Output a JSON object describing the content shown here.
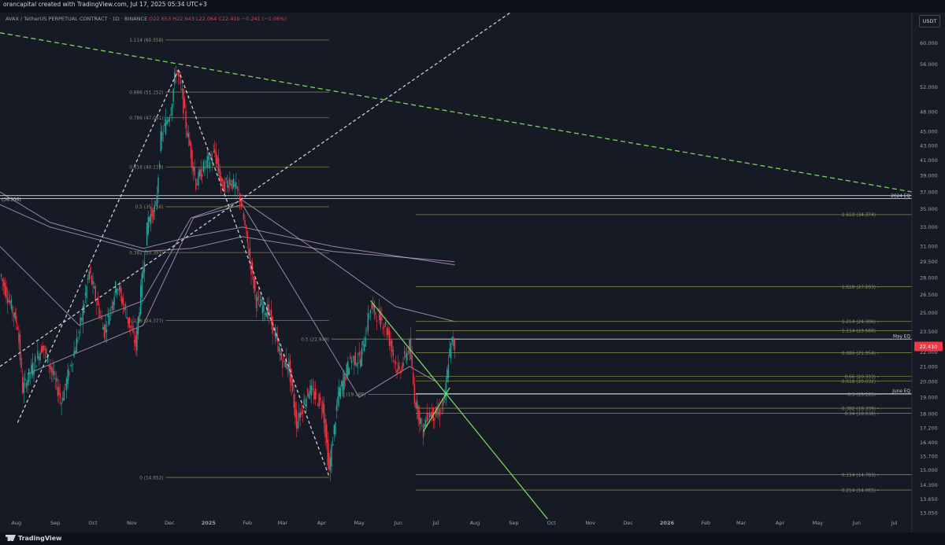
{
  "header": {
    "creator": "orancapital created with TradingView.com, Jul 17, 2025 05:34 UTC+3",
    "symbol": "AVAX / TetherUS PERPETUAL CONTRACT · 1D · BINANCE",
    "ohlc": "O22.653 H22.943 L22.064 C22.410 −0.241 (−1.06%)"
  },
  "currency": "USDT",
  "footer": {
    "brand": "TradingView"
  },
  "colors": {
    "background": "#161a25",
    "up": "#26a69a",
    "down": "#f23645",
    "fib_line": "#7c7f48",
    "trendline": "#7bd45a",
    "ema": "#c7a8d8",
    "eq_line": "#d1d4dc",
    "price_badge": "#f23645"
  },
  "chart_data": {
    "type": "candlestick",
    "scale": "log",
    "yaxis_ticks": [
      60.0,
      56.0,
      52.0,
      48.0,
      45.0,
      43.0,
      41.0,
      39.0,
      37.0,
      35.0,
      33.0,
      31.0,
      29.5,
      28.0,
      26.5,
      25.0,
      23.5,
      22.0,
      21.0,
      20.0,
      19.0,
      18.0,
      17.2,
      16.4,
      15.7,
      15.0,
      14.3,
      13.65,
      13.05
    ],
    "xaxis_ticks": [
      "Aug",
      "Sep",
      "Oct",
      "Nov",
      "Dec",
      "2025",
      "Feb",
      "Mar",
      "Apr",
      "May",
      "Jun",
      "Jul",
      "Aug",
      "Sep",
      "Oct",
      "Nov",
      "Dec",
      "2026",
      "Feb",
      "Mar",
      "Apr",
      "May",
      "Jun",
      "Jul"
    ],
    "x_range": [
      "2024-07-19",
      "2026-07-15"
    ],
    "y_range": [
      12.8,
      66.2
    ],
    "last_price": 22.41,
    "price_series": [
      [
        "2024-07-20",
        28.0
      ],
      [
        "2024-08-02",
        24.0
      ],
      [
        "2024-08-06",
        19.5
      ],
      [
        "2024-08-22",
        22.5
      ],
      [
        "2024-09-06",
        18.8
      ],
      [
        "2024-09-20",
        23.5
      ],
      [
        "2024-09-28",
        28.5
      ],
      [
        "2024-10-10",
        23.5
      ],
      [
        "2024-10-20",
        27.5
      ],
      [
        "2024-11-04",
        22.5
      ],
      [
        "2024-11-10",
        29.0
      ],
      [
        "2024-11-14",
        34.0
      ],
      [
        "2024-11-20",
        35.0
      ],
      [
        "2024-11-24",
        44.0
      ],
      [
        "2024-12-02",
        48.5
      ],
      [
        "2024-12-06",
        55.0
      ],
      [
        "2024-12-10",
        52.0
      ],
      [
        "2024-12-14",
        46.0
      ],
      [
        "2024-12-18",
        42.0
      ],
      [
        "2024-12-22",
        38.0
      ],
      [
        "2024-12-28",
        40.0
      ],
      [
        "2025-01-06",
        42.0
      ],
      [
        "2025-01-12",
        37.5
      ],
      [
        "2025-01-18",
        38.5
      ],
      [
        "2025-01-26",
        36.5
      ],
      [
        "2025-02-02",
        30.5
      ],
      [
        "2025-02-08",
        26.0
      ],
      [
        "2025-02-18",
        25.0
      ],
      [
        "2025-02-28",
        21.5
      ],
      [
        "2025-03-06",
        21.0
      ],
      [
        "2025-03-12",
        17.5
      ],
      [
        "2025-03-22",
        19.5
      ],
      [
        "2025-04-02",
        18.5
      ],
      [
        "2025-04-07",
        15.0
      ],
      [
        "2025-04-14",
        19.0
      ],
      [
        "2025-04-24",
        21.5
      ],
      [
        "2025-05-02",
        21.5
      ],
      [
        "2025-05-10",
        25.5
      ],
      [
        "2025-05-14",
        25.0
      ],
      [
        "2025-05-22",
        24.0
      ],
      [
        "2025-06-01",
        20.5
      ],
      [
        "2025-06-10",
        22.5
      ],
      [
        "2025-06-14",
        19.0
      ],
      [
        "2025-06-21",
        17.0
      ],
      [
        "2025-06-24",
        18.0
      ],
      [
        "2025-07-03",
        18.0
      ],
      [
        "2025-07-08",
        18.8
      ],
      [
        "2025-07-11",
        21.5
      ],
      [
        "2025-07-14",
        22.8
      ],
      [
        "2025-07-16",
        22.41
      ]
    ],
    "fib_levels": [
      {
        "label": "1.114 (60.558)",
        "value": 60.558,
        "from": "2024-11-28",
        "to": "2025-04-07"
      },
      {
        "label": "0.886 (51.152)",
        "value": 51.152,
        "from": "2024-11-28",
        "to": "2025-04-07"
      },
      {
        "label": "0.786 (47.061)",
        "value": 47.061,
        "from": "2024-11-28",
        "to": "2025-04-07"
      },
      {
        "label": "0.618 (40.119)",
        "value": 40.119,
        "from": "2024-11-28",
        "to": "2025-04-07"
      },
      {
        "label": "0.5 (35.256)",
        "value": 35.256,
        "from": "2024-11-28",
        "to": "2025-04-07"
      },
      {
        "label": "0.382 (30.393)",
        "value": 30.393,
        "from": "2024-11-28",
        "to": "2025-04-07"
      },
      {
        "label": "0.236 (24.377)",
        "value": 24.377,
        "from": "2024-11-28",
        "to": "2025-04-07"
      },
      {
        "label": "0 (14.652)",
        "value": 14.652,
        "from": "2024-11-28",
        "to": "2025-04-07"
      },
      {
        "label": "0.5 (22.949)",
        "value": 22.949,
        "from": "2025-04-09",
        "to": "2025-07-20"
      },
      {
        "label": "0.5 (19.188)",
        "value": 19.188,
        "from": "2025-05-08",
        "to": "2025-07-20"
      },
      {
        "label": "2.618 (34.374)",
        "value": 34.374,
        "from": "2025-06-15",
        "to": "2026-07-15"
      },
      {
        "label": "1.618 (27.203)",
        "value": 27.203,
        "from": "2025-06-15",
        "to": "2026-07-15"
      },
      {
        "label": "1.214 (24.306)",
        "value": 24.306,
        "from": "2025-06-15",
        "to": "2026-07-15"
      },
      {
        "label": "1.114 (23.588)",
        "value": 23.588,
        "from": "2025-06-15",
        "to": "2026-07-15"
      },
      {
        "label": "0.886 (21.954)",
        "value": 21.954,
        "from": "2025-06-15",
        "to": "2026-07-15"
      },
      {
        "label": "0.66 (20.333)",
        "value": 20.333,
        "from": "2025-06-15",
        "to": "2026-07-15"
      },
      {
        "label": "0.618 (20.032)",
        "value": 20.032,
        "from": "2025-06-15",
        "to": "2026-07-15"
      },
      {
        "label": "0.5 (19.185)",
        "value": 19.185,
        "from": "2025-06-15",
        "to": "2026-07-15"
      },
      {
        "label": "0.382 (18.339)",
        "value": 18.339,
        "from": "2025-06-15",
        "to": "2026-07-15"
      },
      {
        "label": "0.34 (18.038)",
        "value": 18.038,
        "from": "2025-06-15",
        "to": "2026-07-15"
      },
      {
        "label": "0.114 (14.783)",
        "value": 14.783,
        "from": "2025-06-15",
        "to": "2026-07-15"
      },
      {
        "label": "0.214 (14.065)",
        "value": 14.065,
        "from": "2025-06-15",
        "to": "2026-07-15"
      }
    ],
    "horizontal_lines": [
      {
        "label": "(36.556)",
        "value": 36.556
      },
      {
        "label": "2024 EQ",
        "value": 36.2
      },
      {
        "label": "May EQ",
        "value": 22.95
      },
      {
        "label": "June EQ",
        "value": 19.22
      }
    ],
    "trendlines": [
      {
        "style": "dashed",
        "color": "green",
        "from": [
          "2024-07-19",
          62.0
        ],
        "to": [
          "2026-07-15",
          37.0
        ]
      },
      {
        "style": "dashed",
        "color": "white",
        "from": [
          "2024-07-19",
          21.0
        ],
        "to": [
          "2025-09-18",
          70.0
        ]
      },
      {
        "style": "dashed",
        "color": "white",
        "from": [
          "2024-08-02",
          17.5
        ],
        "to": [
          "2024-12-08",
          55.0
        ]
      },
      {
        "style": "dashed",
        "color": "white",
        "from": [
          "2024-12-08",
          55.0
        ],
        "to": [
          "2025-04-07",
          14.7
        ]
      },
      {
        "style": "solid",
        "color": "green",
        "from": [
          "2025-05-10",
          26.0
        ],
        "to": [
          "2025-09-28",
          12.8
        ]
      },
      {
        "style": "solid",
        "color": "green",
        "from": [
          "2025-06-21",
          17.0
        ],
        "to": [
          "2025-07-12",
          19.6
        ]
      }
    ],
    "moving_averages": [
      {
        "points": [
          [
            "2024-07-19",
            35.5
          ],
          [
            "2024-08-28",
            33.0
          ],
          [
            "2024-11-10",
            30.5
          ],
          [
            "2024-12-18",
            30.8
          ],
          [
            "2025-01-28",
            32.0
          ],
          [
            "2025-04-10",
            30.5
          ],
          [
            "2025-07-16",
            29.5
          ]
        ]
      },
      {
        "points": [
          [
            "2024-07-19",
            37.0
          ],
          [
            "2024-08-28",
            33.5
          ],
          [
            "2024-11-10",
            30.8
          ],
          [
            "2024-12-18",
            32.0
          ],
          [
            "2025-01-28",
            33.0
          ],
          [
            "2025-04-10",
            31.0
          ],
          [
            "2025-07-16",
            29.2
          ]
        ]
      },
      {
        "points": [
          [
            "2024-07-19",
            31.0
          ],
          [
            "2024-09-20",
            24.0
          ],
          [
            "2024-11-10",
            26.0
          ],
          [
            "2024-12-18",
            34.0
          ],
          [
            "2025-01-28",
            36.0
          ],
          [
            "2025-04-10",
            29.5
          ],
          [
            "2025-05-30",
            25.5
          ],
          [
            "2025-07-16",
            24.3
          ]
        ]
      },
      {
        "points": [
          [
            "2024-08-10",
            20.5
          ],
          [
            "2024-09-20",
            22.0
          ],
          [
            "2024-11-10",
            24.0
          ],
          [
            "2024-12-20",
            34.0
          ],
          [
            "2025-01-28",
            35.5
          ],
          [
            "2025-03-10",
            27.0
          ],
          [
            "2025-05-01",
            19.0
          ],
          [
            "2025-06-10",
            21.0
          ],
          [
            "2025-07-01",
            20.0
          ]
        ]
      }
    ]
  }
}
